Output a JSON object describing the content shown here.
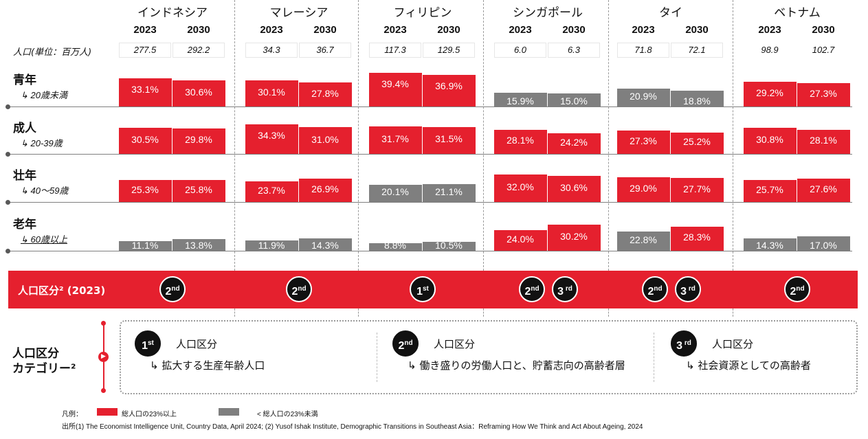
{
  "countries": [
    "インドネシア",
    "マレーシア",
    "フィリピン",
    "シンガポール",
    "タイ",
    "ベトナム"
  ],
  "years": [
    "2023",
    "2030"
  ],
  "population_label": "人口(単位：百万人)",
  "population": [
    [
      "277.5",
      "292.2"
    ],
    [
      "34.3",
      "36.7"
    ],
    [
      "117.3",
      "129.5"
    ],
    [
      "6.0",
      "6.3"
    ],
    [
      "71.8",
      "72.1"
    ],
    [
      "98.9",
      "102.7"
    ]
  ],
  "rows": [
    {
      "label": "青年",
      "sub": "↳ 20歳未満"
    },
    {
      "label": "成人",
      "sub": "↳ 20-39歳"
    },
    {
      "label": "壮年",
      "sub": "↳ 40～59歳"
    },
    {
      "label": "老年",
      "sub": "↳ 60歳以上"
    }
  ],
  "colors": {
    "above": "#e5202e",
    "below": "#7f7f7f"
  },
  "chart_data": {
    "type": "bar",
    "threshold": 23,
    "categories": [
      "インドネシア",
      "マレーシア",
      "フィリピン",
      "シンガポール",
      "タイ",
      "ベトナム"
    ],
    "series_years": [
      "2023",
      "2030"
    ],
    "groups": [
      "青年",
      "成人",
      "壮年",
      "老年"
    ],
    "values": [
      [
        [
          33.1,
          30.6
        ],
        [
          30.1,
          27.8
        ],
        [
          39.4,
          36.9
        ],
        [
          15.9,
          15.0
        ],
        [
          20.9,
          18.8
        ],
        [
          29.2,
          27.3
        ]
      ],
      [
        [
          30.5,
          29.8
        ],
        [
          34.3,
          31.0
        ],
        [
          31.7,
          31.5
        ],
        [
          28.1,
          24.2
        ],
        [
          27.3,
          25.2
        ],
        [
          30.8,
          28.1
        ]
      ],
      [
        [
          25.3,
          25.8
        ],
        [
          23.7,
          26.9
        ],
        [
          20.1,
          21.1
        ],
        [
          32.0,
          30.6
        ],
        [
          29.0,
          27.7
        ],
        [
          25.7,
          27.6
        ]
      ],
      [
        [
          11.1,
          13.8
        ],
        [
          11.9,
          14.3
        ],
        [
          8.8,
          10.5
        ],
        [
          24.0,
          30.2
        ],
        [
          22.8,
          28.3
        ],
        [
          14.3,
          17.0
        ]
      ]
    ],
    "labels": [
      [
        [
          "33.1%",
          "30.6%"
        ],
        [
          "30.1%",
          "27.8%"
        ],
        [
          "39.4%",
          "36.9%"
        ],
        [
          "15.9%",
          "15.0%"
        ],
        [
          "20.9%",
          "18.8%"
        ],
        [
          "29.2%",
          "27.3%"
        ]
      ],
      [
        [
          "30.5%",
          "29.8%"
        ],
        [
          "34.3%",
          "31.0%"
        ],
        [
          "31.7%",
          "31.5%"
        ],
        [
          "28.1%",
          "24.2%"
        ],
        [
          "27.3%",
          "25.2%"
        ],
        [
          "30.8%",
          "28.1%"
        ]
      ],
      [
        [
          "25.3%",
          "25.8%"
        ],
        [
          "23.7%",
          "26.9%"
        ],
        [
          "20.1%",
          "21.1%"
        ],
        [
          "32.0%",
          "30.6%"
        ],
        [
          "29.0%",
          "27.7%"
        ],
        [
          "25.7%",
          "27.6%"
        ]
      ],
      [
        [
          "11.1%",
          "13.8%"
        ],
        [
          "11.9%",
          "14.3%"
        ],
        [
          "8.8%",
          "10.5%"
        ],
        [
          "24.0%",
          "30.2%"
        ],
        [
          "22.8%",
          "28.3%"
        ],
        [
          "14.3%",
          "17.0%"
        ]
      ]
    ]
  },
  "segment_band": {
    "title": "人口区分² (2023)",
    "badges": [
      [
        {
          "num": "2",
          "suf": "nd"
        }
      ],
      [
        {
          "num": "2",
          "suf": "nd"
        }
      ],
      [
        {
          "num": "1",
          "suf": "st"
        }
      ],
      [
        {
          "num": "2",
          "suf": "nd"
        },
        {
          "num": "3",
          "suf": " rd"
        }
      ],
      [
        {
          "num": "2",
          "suf": "nd"
        },
        {
          "num": "3",
          "suf": " rd"
        }
      ],
      [
        {
          "num": "2",
          "suf": "nd"
        }
      ]
    ]
  },
  "category": {
    "title_line1": "人口区分",
    "title_line2": "カテゴリー²",
    "items": [
      {
        "num": "1",
        "suf": "st",
        "label": "人口区分",
        "desc": "↳ 拡大する生産年齢人口"
      },
      {
        "num": "2",
        "suf": "nd",
        "label": "人口区分",
        "desc": "↳ 働き盛りの労働人口と、貯蓄志向の高齢者層"
      },
      {
        "num": "3",
        "suf": " rd",
        "label": "人口区分",
        "desc": "↳ 社会資源としての高齢者"
      }
    ]
  },
  "legend": {
    "title": "凡例：",
    "above": "総人口の23%以上",
    "below": "< 総人口の23%未満"
  },
  "source": "出所(1) The Economist Intelligence Unit, Country Data, April 2024; (2) Yusof Ishak Institute, Demographic Transitions in Southeast Asia：Reframing How We Think and Act About Ageing, 2024"
}
